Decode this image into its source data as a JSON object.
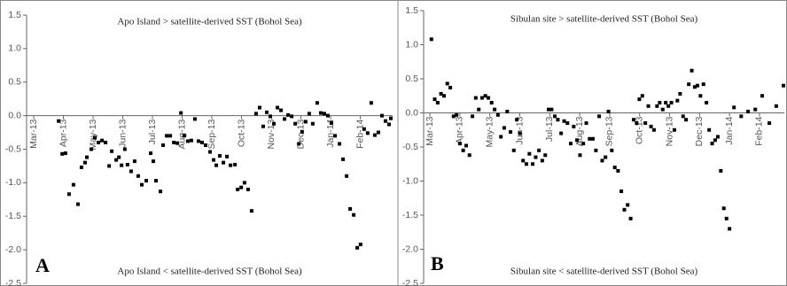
{
  "chart_data": [
    {
      "type": "scatter",
      "panel_label": "A",
      "annotation_top": "Apo Island > satellite-derived SST (Bohol Sea)",
      "annotation_bottom": "Apo Island < satellite-derived SST (Bohol Sea)",
      "color": "#000000",
      "xlim": [
        -0.24,
        12.09
      ],
      "ylim": [
        -2.5,
        1.5
      ],
      "xticks": [
        {
          "value": 0,
          "label": "Mar-13"
        },
        {
          "value": 1,
          "label": "Apr-13"
        },
        {
          "value": 2,
          "label": "May-13"
        },
        {
          "value": 3,
          "label": "Jun-13"
        },
        {
          "value": 4,
          "label": "Jul-13"
        },
        {
          "value": 5,
          "label": "Aug-13"
        },
        {
          "value": 6,
          "label": "Sep-13"
        },
        {
          "value": 7,
          "label": "Oct-13"
        },
        {
          "value": 8,
          "label": "Nov-13"
        },
        {
          "value": 9,
          "label": "Dec-13"
        },
        {
          "value": 10,
          "label": "Jan-14"
        },
        {
          "value": 11,
          "label": "Feb-14"
        }
      ],
      "yticks": [
        {
          "value": 1.5,
          "label": "1.5"
        },
        {
          "value": 1,
          "label": "1.0"
        },
        {
          "value": 0.5,
          "label": "0.5"
        },
        {
          "value": 0,
          "label": "0.0"
        },
        {
          "value": -0.5,
          "label": "-0.5"
        },
        {
          "value": -1,
          "label": "-1.0"
        },
        {
          "value": -1.5,
          "label": "-1.5"
        },
        {
          "value": -2,
          "label": "-2.0"
        },
        {
          "value": -2.5,
          "label": "-2.5"
        }
      ],
      "x": [
        0.84,
        0.96,
        1.07,
        1.19,
        1.34,
        1.49,
        1.61,
        1.73,
        1.79,
        1.94,
        2.06,
        2.18,
        2.3,
        2.42,
        2.54,
        2.63,
        2.78,
        2.87,
        2.96,
        3.07,
        3.16,
        3.28,
        3.4,
        3.52,
        3.64,
        3.79,
        3.94,
        4.03,
        4.12,
        4.27,
        4.36,
        4.48,
        4.6,
        4.72,
        4.84,
        4.96,
        5.07,
        5.19,
        5.31,
        5.43,
        5.55,
        5.67,
        5.79,
        5.94,
        6.06,
        6.15,
        6.27,
        6.39,
        6.51,
        6.63,
        6.78,
        6.87,
        6.99,
        7.1,
        7.22,
        7.34,
        7.49,
        7.61,
        7.73,
        7.85,
        7.97,
        8.09,
        8.21,
        8.33,
        8.45,
        8.57,
        8.69,
        8.81,
        8.93,
        9.04,
        9.16,
        9.28,
        9.4,
        9.55,
        9.67,
        9.79,
        9.91,
        10.03,
        10.15,
        10.3,
        10.42,
        10.54,
        10.66,
        10.78,
        10.9,
        11.01,
        11.13,
        11.25,
        11.37,
        11.49,
        11.61,
        11.73,
        11.85,
        11.97,
        12.03
      ],
      "values": [
        -0.08,
        -0.57,
        -0.56,
        -1.17,
        -1.03,
        -1.32,
        -0.77,
        -0.7,
        -0.62,
        -0.5,
        -0.33,
        -0.4,
        -0.37,
        -0.4,
        -0.75,
        -0.53,
        -0.66,
        -0.62,
        -0.74,
        -0.5,
        -0.73,
        -0.83,
        -0.68,
        -0.9,
        -1.03,
        -0.97,
        -0.56,
        -0.68,
        -0.97,
        -1.13,
        -0.44,
        -0.3,
        -0.3,
        -0.4,
        -0.41,
        0.04,
        -0.3,
        -0.38,
        -0.37,
        -0.05,
        -0.38,
        -0.4,
        -0.44,
        -0.54,
        -0.66,
        -0.74,
        -0.6,
        -0.7,
        -0.61,
        -0.74,
        -0.73,
        -1.1,
        -1.07,
        -1.0,
        -1.1,
        -1.42,
        0.03,
        0.12,
        -0.16,
        0.05,
        -0.01,
        -0.12,
        0.12,
        0.08,
        -0.05,
        0.01,
        -0.01,
        -0.12,
        -0.42,
        -0.24,
        -0.09,
        0.03,
        -0.12,
        0.19,
        0.04,
        0.03,
        0,
        -0.11,
        -0.3,
        -0.42,
        -0.65,
        -0.9,
        -1.39,
        -1.48,
        -1.97,
        -1.92,
        -0.2,
        -0.26,
        0.19,
        -0.29,
        -0.25,
        0,
        -0.08,
        -0.13,
        -0.04
      ]
    },
    {
      "type": "scatter",
      "panel_label": "B",
      "annotation_top": "Sibulan site > satellite-derived SST (Bohol Sea)",
      "annotation_bottom": "Sibulan site < satellite-derived SST (Bohol Sea)",
      "color": "#000000",
      "xlim": [
        -0.21,
        11.83
      ],
      "ylim": [
        -2.5,
        1.5
      ],
      "xticks": [
        {
          "value": 0,
          "label": "Mar-13"
        },
        {
          "value": 1,
          "label": "Apr-13"
        },
        {
          "value": 2,
          "label": "May-13"
        },
        {
          "value": 3,
          "label": "Jun-13"
        },
        {
          "value": 4,
          "label": "Jul-13"
        },
        {
          "value": 5,
          "label": "Aug-13"
        },
        {
          "value": 6,
          "label": "Sep-13"
        },
        {
          "value": 7,
          "label": "Oct-13"
        },
        {
          "value": 8,
          "label": "Nov-13"
        },
        {
          "value": 9,
          "label": "Dec-13"
        },
        {
          "value": 10,
          "label": "Jan-14"
        },
        {
          "value": 11,
          "label": "Feb-14"
        }
      ],
      "yticks": [
        {
          "value": 1.5,
          "label": "1.5"
        },
        {
          "value": 1,
          "label": "1.0"
        },
        {
          "value": 0.5,
          "label": "0.5"
        },
        {
          "value": 0,
          "label": "0.0"
        },
        {
          "value": -0.5,
          "label": "-0.5"
        },
        {
          "value": -1,
          "label": "-1.0"
        },
        {
          "value": -1.5,
          "label": "-1.5"
        },
        {
          "value": -2,
          "label": "-2.0"
        },
        {
          "value": -2.5,
          "label": "-2.5"
        }
      ],
      "x": [
        0.05,
        0.16,
        0.26,
        0.37,
        0.47,
        0.58,
        0.68,
        0.79,
        0.89,
        1.0,
        1.11,
        1.21,
        1.32,
        1.42,
        1.53,
        1.63,
        1.74,
        1.85,
        1.95,
        2.06,
        2.16,
        2.27,
        2.37,
        2.48,
        2.58,
        2.69,
        2.8,
        2.9,
        3.01,
        3.11,
        3.22,
        3.32,
        3.43,
        3.53,
        3.64,
        3.75,
        3.85,
        3.96,
        4.06,
        4.17,
        4.27,
        4.38,
        4.48,
        4.59,
        4.7,
        4.8,
        4.91,
        5.01,
        5.12,
        5.22,
        5.33,
        5.44,
        5.54,
        5.65,
        5.75,
        5.86,
        5.96,
        6.07,
        6.17,
        6.28,
        6.39,
        6.49,
        6.6,
        6.7,
        6.8,
        6.9,
        6.99,
        7.09,
        7.19,
        7.29,
        7.38,
        7.48,
        7.58,
        7.67,
        7.77,
        7.87,
        7.96,
        8.06,
        8.16,
        8.26,
        8.35,
        8.45,
        8.55,
        8.64,
        8.74,
        8.84,
        8.93,
        9.03,
        9.13,
        9.23,
        9.32,
        9.42,
        9.52,
        9.61,
        9.71,
        9.81,
        9.9,
        10.0,
        10.15,
        10.39,
        10.62,
        10.86,
        11.09,
        11.33,
        11.56,
        11.8
      ],
      "values": [
        1.08,
        0.2,
        0.15,
        0.28,
        0.25,
        0.43,
        0.37,
        -0.05,
        -0.03,
        -0.45,
        -0.55,
        -0.48,
        -0.62,
        -0.05,
        0.22,
        0.05,
        0.22,
        0.25,
        0.22,
        0.15,
        0.05,
        -0.03,
        -0.35,
        -0.22,
        0.02,
        -0.28,
        -0.55,
        -0.1,
        -0.3,
        -0.7,
        -0.75,
        -0.6,
        -0.75,
        -0.65,
        -0.55,
        -0.7,
        -0.62,
        0.05,
        0.05,
        -0.05,
        -0.1,
        -0.3,
        -0.12,
        -0.15,
        -0.45,
        -0.2,
        -0.4,
        -0.62,
        -0.45,
        -0.15,
        -0.38,
        -0.38,
        -0.55,
        -0.05,
        -0.7,
        -0.65,
        0.02,
        -0.55,
        -0.8,
        -0.85,
        -1.15,
        -1.42,
        -1.35,
        -1.55,
        -0.1,
        -0.15,
        0.2,
        0.25,
        -0.15,
        0.1,
        -0.2,
        -0.25,
        0.1,
        0.15,
        0.05,
        0.15,
        0.1,
        0.15,
        -0.25,
        0.18,
        0.28,
        -0.05,
        -0.1,
        0.42,
        0.62,
        0.38,
        0.4,
        0.25,
        0.42,
        0.15,
        -0.25,
        -0.45,
        -0.4,
        -0.35,
        -0.85,
        -1.4,
        -1.55,
        -1.7,
        0.08,
        -0.05,
        0.02,
        0.05,
        0.25,
        -0.15,
        0.1,
        0.4
      ]
    }
  ]
}
